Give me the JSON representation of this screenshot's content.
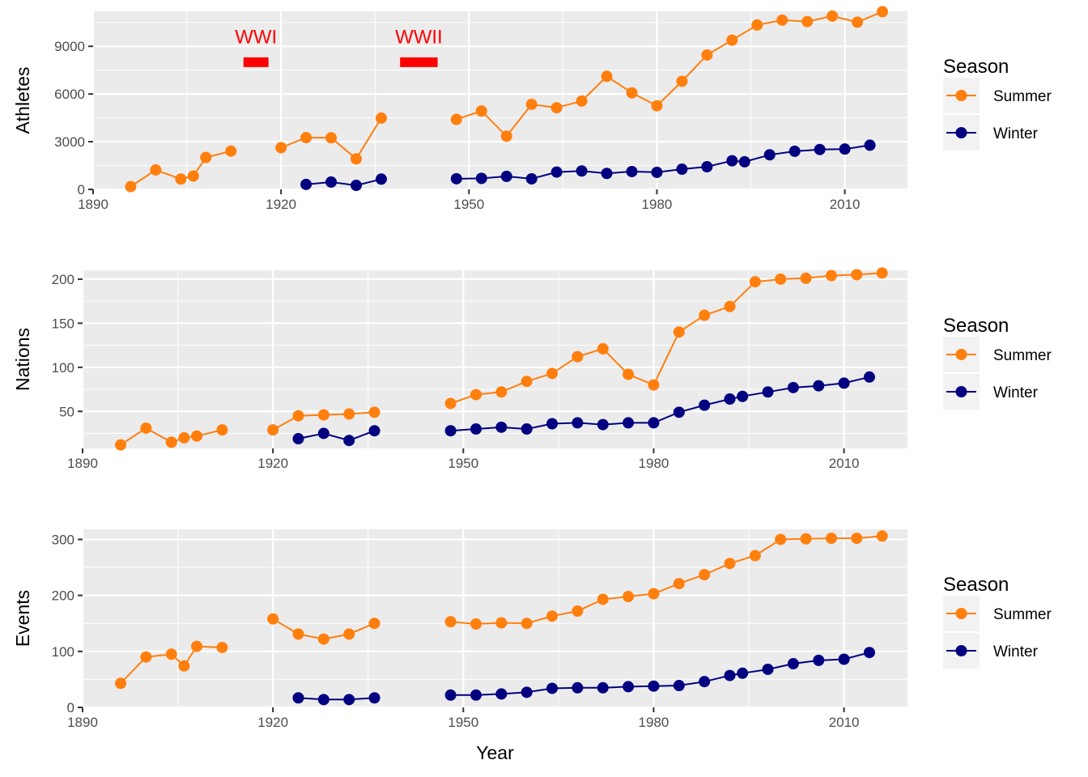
{
  "colors": {
    "summer": "#ff7f0e",
    "winter": "#000080",
    "annotation": "#ff0000",
    "panel_bg": "#ebebeb",
    "grid": "#ffffff",
    "tick_text": "#4d4d4d"
  },
  "legend": {
    "title": "Season",
    "items": [
      "Summer",
      "Winter"
    ]
  },
  "chart_data": [
    {
      "type": "line",
      "ylabel": "Athletes",
      "xlabel": "",
      "xlim": [
        1890,
        2020
      ],
      "ylim": [
        0,
        11200
      ],
      "x_ticks": [
        1890,
        1920,
        1950,
        1980,
        2010
      ],
      "y_ticks": [
        0,
        3000,
        6000,
        9000
      ],
      "y_tick_labels": [
        "0",
        "3000",
        "6000",
        "9000"
      ],
      "grid": true,
      "legend_position": "right",
      "annotations": [
        {
          "label": "WWI",
          "x_start": 1914,
          "x_end": 1918,
          "y": 8000,
          "label_y": 9600
        },
        {
          "label": "WWII",
          "x_start": 1939,
          "x_end": 1945,
          "y": 8000,
          "label_y": 9600
        }
      ],
      "series": [
        {
          "name": "Summer",
          "segments": [
            [
              [
                1896,
                176
              ],
              [
                1900,
                1224
              ],
              [
                1904,
                650
              ],
              [
                1906,
                841
              ],
              [
                1908,
                2008
              ],
              [
                1912,
                2407
              ]
            ],
            [
              [
                1920,
                2626
              ],
              [
                1924,
                3256
              ],
              [
                1928,
                3246
              ],
              [
                1932,
                1922
              ],
              [
                1936,
                4484
              ]
            ],
            [
              [
                1948,
                4402
              ],
              [
                1952,
                4932
              ],
              [
                1956,
                3347
              ],
              [
                1960,
                5352
              ],
              [
                1964,
                5137
              ],
              [
                1968,
                5558
              ],
              [
                1972,
                7113
              ],
              [
                1976,
                6073
              ],
              [
                1980,
                5259
              ],
              [
                1984,
                6797
              ],
              [
                1988,
                8454
              ],
              [
                1992,
                9386
              ],
              [
                1996,
                10339
              ],
              [
                2000,
                10647
              ],
              [
                2004,
                10557
              ],
              [
                2008,
                10899
              ],
              [
                2012,
                10517
              ],
              [
                2016,
                11180
              ]
            ]
          ]
        },
        {
          "name": "Winter",
          "segments": [
            [
              [
                1924,
                313
              ],
              [
                1928,
                462
              ],
              [
                1932,
                252
              ],
              [
                1936,
                646
              ]
            ],
            [
              [
                1948,
                669
              ],
              [
                1952,
                694
              ],
              [
                1956,
                821
              ],
              [
                1960,
                665
              ],
              [
                1964,
                1091
              ],
              [
                1968,
                1158
              ],
              [
                1972,
                1006
              ],
              [
                1976,
                1123
              ],
              [
                1980,
                1072
              ],
              [
                1984,
                1272
              ],
              [
                1988,
                1423
              ],
              [
                1992,
                1801
              ],
              [
                1994,
                1737
              ],
              [
                1998,
                2176
              ],
              [
                2002,
                2399
              ],
              [
                2006,
                2508
              ],
              [
                2010,
                2536
              ],
              [
                2014,
                2780
              ]
            ]
          ]
        }
      ]
    },
    {
      "type": "line",
      "ylabel": "Nations",
      "xlabel": "",
      "xlim": [
        1890,
        2020
      ],
      "ylim": [
        8,
        210
      ],
      "x_ticks": [
        1890,
        1920,
        1950,
        1980,
        2010
      ],
      "y_ticks": [
        50,
        100,
        150,
        200
      ],
      "y_tick_labels": [
        "50",
        "100",
        "150",
        "200"
      ],
      "grid": true,
      "legend_position": "right",
      "series": [
        {
          "name": "Summer",
          "segments": [
            [
              [
                1896,
                12
              ],
              [
                1900,
                31
              ],
              [
                1904,
                15
              ],
              [
                1906,
                20
              ],
              [
                1908,
                22
              ],
              [
                1912,
                29
              ]
            ],
            [
              [
                1920,
                29
              ],
              [
                1924,
                45
              ],
              [
                1928,
                46
              ],
              [
                1932,
                47
              ],
              [
                1936,
                49
              ]
            ],
            [
              [
                1948,
                59
              ],
              [
                1952,
                69
              ],
              [
                1956,
                72
              ],
              [
                1960,
                84
              ],
              [
                1964,
                93
              ],
              [
                1968,
                112
              ],
              [
                1972,
                121
              ],
              [
                1976,
                92
              ],
              [
                1980,
                80
              ],
              [
                1984,
                140
              ],
              [
                1988,
                159
              ],
              [
                1992,
                169
              ],
              [
                1996,
                197
              ],
              [
                2000,
                200
              ],
              [
                2004,
                201
              ],
              [
                2008,
                204
              ],
              [
                2012,
                205
              ],
              [
                2016,
                207
              ]
            ]
          ]
        },
        {
          "name": "Winter",
          "segments": [
            [
              [
                1924,
                19
              ],
              [
                1928,
                25
              ],
              [
                1932,
                17
              ],
              [
                1936,
                28
              ]
            ],
            [
              [
                1948,
                28
              ],
              [
                1952,
                30
              ],
              [
                1956,
                32
              ],
              [
                1960,
                30
              ],
              [
                1964,
                36
              ],
              [
                1968,
                37
              ],
              [
                1972,
                35
              ],
              [
                1976,
                37
              ],
              [
                1980,
                37
              ],
              [
                1984,
                49
              ],
              [
                1988,
                57
              ],
              [
                1992,
                64
              ],
              [
                1994,
                67
              ],
              [
                1998,
                72
              ],
              [
                2002,
                77
              ],
              [
                2006,
                79
              ],
              [
                2010,
                82
              ],
              [
                2014,
                89
              ]
            ]
          ]
        }
      ]
    },
    {
      "type": "line",
      "ylabel": "Events",
      "xlabel": "Year",
      "xlim": [
        1890,
        2020
      ],
      "ylim": [
        0,
        318
      ],
      "x_ticks": [
        1890,
        1920,
        1950,
        1980,
        2010
      ],
      "y_ticks": [
        0,
        100,
        200,
        300
      ],
      "y_tick_labels": [
        "0",
        "100",
        "200",
        "300"
      ],
      "grid": true,
      "legend_position": "right",
      "series": [
        {
          "name": "Summer",
          "segments": [
            [
              [
                1896,
                43
              ],
              [
                1900,
                90
              ],
              [
                1904,
                95
              ],
              [
                1906,
                74
              ],
              [
                1908,
                109
              ],
              [
                1912,
                107
              ]
            ],
            [
              [
                1920,
                158
              ],
              [
                1924,
                131
              ],
              [
                1928,
                122
              ],
              [
                1932,
                131
              ],
              [
                1936,
                150
              ]
            ],
            [
              [
                1948,
                153
              ],
              [
                1952,
                149
              ],
              [
                1956,
                151
              ],
              [
                1960,
                150
              ],
              [
                1964,
                163
              ],
              [
                1968,
                172
              ],
              [
                1972,
                193
              ],
              [
                1976,
                198
              ],
              [
                1980,
                203
              ],
              [
                1984,
                221
              ],
              [
                1988,
                237
              ],
              [
                1992,
                257
              ],
              [
                1996,
                271
              ],
              [
                2000,
                300
              ],
              [
                2004,
                301
              ],
              [
                2008,
                302
              ],
              [
                2012,
                302
              ],
              [
                2016,
                306
              ]
            ]
          ]
        },
        {
          "name": "Winter",
          "segments": [
            [
              [
                1924,
                17
              ],
              [
                1928,
                14
              ],
              [
                1932,
                14
              ],
              [
                1936,
                17
              ]
            ],
            [
              [
                1948,
                22
              ],
              [
                1952,
                22
              ],
              [
                1956,
                24
              ],
              [
                1960,
                27
              ],
              [
                1964,
                34
              ],
              [
                1968,
                35
              ],
              [
                1972,
                35
              ],
              [
                1976,
                37
              ],
              [
                1980,
                38
              ],
              [
                1984,
                39
              ],
              [
                1988,
                46
              ],
              [
                1992,
                57
              ],
              [
                1994,
                61
              ],
              [
                1998,
                68
              ],
              [
                2002,
                78
              ],
              [
                2006,
                84
              ],
              [
                2010,
                86
              ],
              [
                2014,
                98
              ]
            ]
          ]
        }
      ]
    }
  ]
}
